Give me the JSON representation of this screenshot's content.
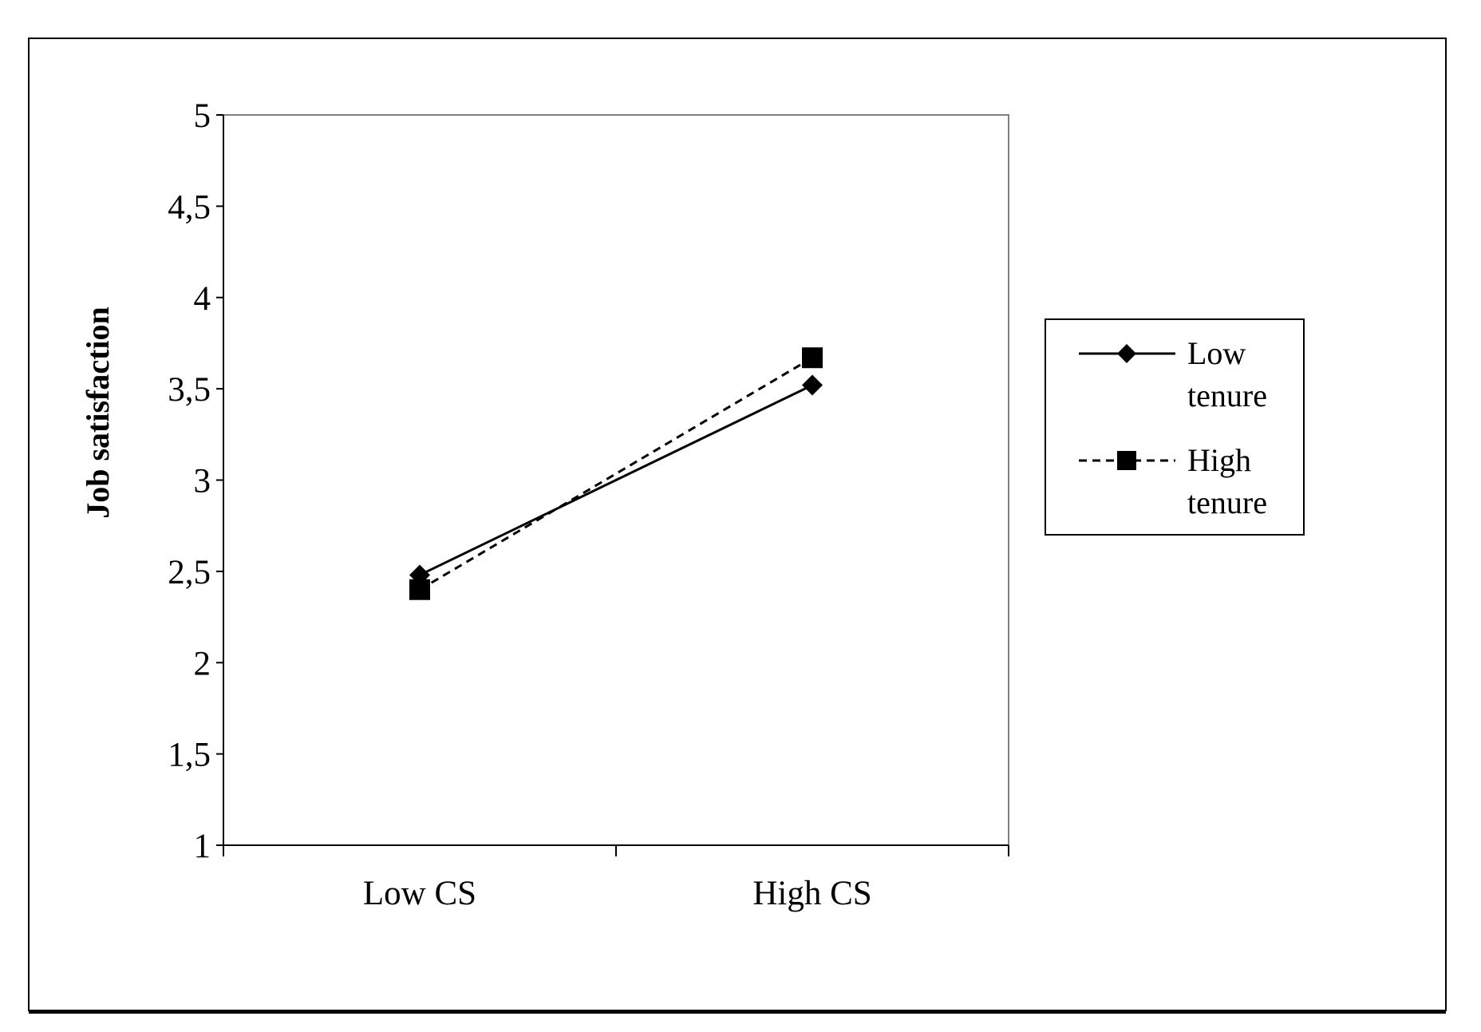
{
  "chart_data": {
    "type": "line",
    "categories": [
      "Low CS",
      "High CS"
    ],
    "series": [
      {
        "name": "Low tenure",
        "values": [
          2.48,
          3.52
        ],
        "marker": "diamond",
        "dash": "solid",
        "color": "#000000"
      },
      {
        "name": "High tenure",
        "values": [
          2.4,
          3.67
        ],
        "marker": "square",
        "dash": "dashed",
        "color": "#000000"
      }
    ],
    "title": "",
    "xlabel": "",
    "ylabel": "Job satisfaction",
    "ylim": [
      1,
      5
    ],
    "yticks": [
      "1",
      "1,5",
      "2",
      "2,5",
      "3",
      "3,5",
      "4",
      "4,5",
      "5"
    ],
    "yticks_values": [
      1,
      1.5,
      2,
      2.5,
      3,
      3.5,
      4,
      4.5,
      5
    ],
    "grid": false,
    "legend": {
      "position": "right",
      "entries": [
        {
          "line1": "Low",
          "line2": "tenure"
        },
        {
          "line1": "High",
          "line2": "tenure"
        }
      ]
    }
  }
}
